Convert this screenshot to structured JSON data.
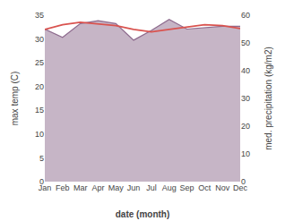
{
  "chart_data": {
    "type": "line",
    "categories": [
      "Jan",
      "Feb",
      "Mar",
      "Apr",
      "May",
      "Jun",
      "Jul",
      "Aug",
      "Sep",
      "Oct",
      "Nov",
      "Dec"
    ],
    "series": [
      {
        "type": "line",
        "color": "#d9534f",
        "values": [
          32.0,
          33.0,
          33.5,
          33.2,
          32.8,
          32.0,
          31.5,
          32.0,
          32.5,
          33.0,
          32.8,
          32.2
        ]
      },
      {
        "type": "area",
        "axis": "y2",
        "color": "#8e6b8e",
        "values": [
          55.0,
          52.0,
          57.0,
          58.0,
          57.0,
          51.0,
          54.5,
          58.5,
          55.0,
          55.5,
          56.0,
          56.0
        ]
      }
    ],
    "xlabel": "date (month)",
    "ylabel": "max temp (C)",
    "y2label": "med. precipitation (kg/m2)",
    "ylim": [
      0,
      35
    ],
    "yticks": [
      0,
      5,
      10,
      15,
      20,
      25,
      30,
      35
    ],
    "y2lim": [
      0,
      60
    ],
    "y2ticks": [
      0,
      10,
      20,
      30,
      40,
      50,
      60
    ],
    "grid": false
  }
}
